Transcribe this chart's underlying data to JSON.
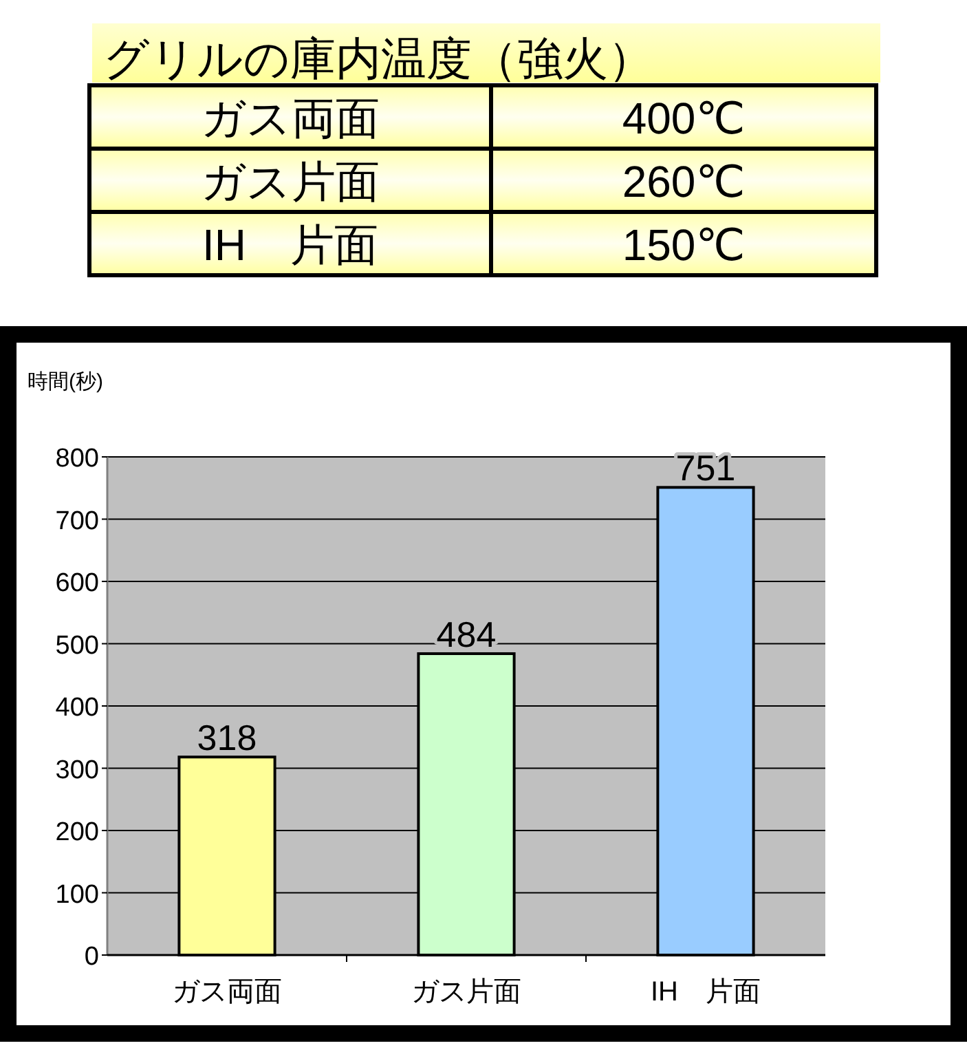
{
  "chart_data": [
    {
      "type": "other",
      "title": "グリルの庫内温度（強火）",
      "annotations": [
        "ガス両面",
        "400℃",
        "ガス片面",
        "260℃",
        "IH　片面",
        "150℃"
      ]
    },
    {
      "type": "bar",
      "categories": [
        "ガス両面",
        "ガス片面",
        "IH　片面"
      ],
      "values": [
        318,
        484,
        751
      ],
      "colors": [
        "#ffff99",
        "#ccffcc",
        "#99ccff"
      ],
      "ylabel": "時間(秒)",
      "ylim": [
        0,
        800
      ],
      "yticks": [
        0,
        100,
        200,
        300,
        400,
        500,
        600,
        700,
        800
      ],
      "grid": "y",
      "data_labels": true
    }
  ]
}
